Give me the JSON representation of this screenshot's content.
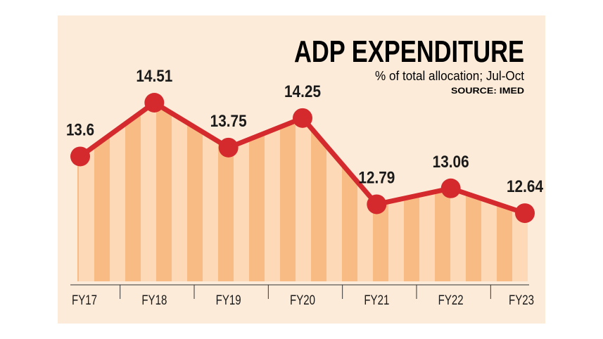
{
  "chart_data": {
    "type": "line",
    "title": "ADP EXPENDITURE",
    "subtitle": "% of total allocation; Jul-Oct",
    "source": "SOURCE: IMED",
    "categories": [
      "FY17",
      "FY18",
      "FY19",
      "FY20",
      "FY21",
      "FY22",
      "FY23"
    ],
    "values": [
      13.6,
      14.51,
      13.75,
      14.25,
      12.79,
      13.06,
      12.64
    ],
    "data_labels": [
      "13.6",
      "14.51",
      "13.75",
      "14.25",
      "12.79",
      "13.06",
      "12.64"
    ],
    "ylim": [
      11.5,
      15.2
    ],
    "grid": false,
    "area_fill": "vertical stripes",
    "colors": {
      "background": "#fdebd9",
      "line": "#d42a2e",
      "stripe_dark": "#f9bb84",
      "stripe_light": "#fdd9b8",
      "text": "#1a1a1a"
    }
  }
}
